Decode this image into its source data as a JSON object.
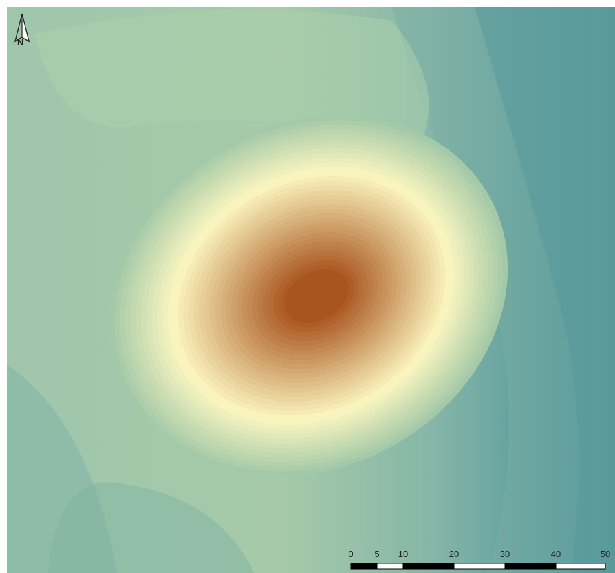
{
  "map": {
    "type": "elevation-contour-map",
    "colors": {
      "low": "#3f8c96",
      "mid": "#a4c9a8",
      "light": "#fcf6c0",
      "high": "#a9551f"
    }
  },
  "north_arrow": {
    "label": "N",
    "icon": "north-arrow-icon"
  },
  "scale_bar": {
    "ticks": [
      "0",
      "5",
      "10",
      "20",
      "30",
      "40",
      "50"
    ],
    "units": [
      "0",
      "5",
      "10",
      "20",
      "30",
      "40",
      "50"
    ]
  }
}
